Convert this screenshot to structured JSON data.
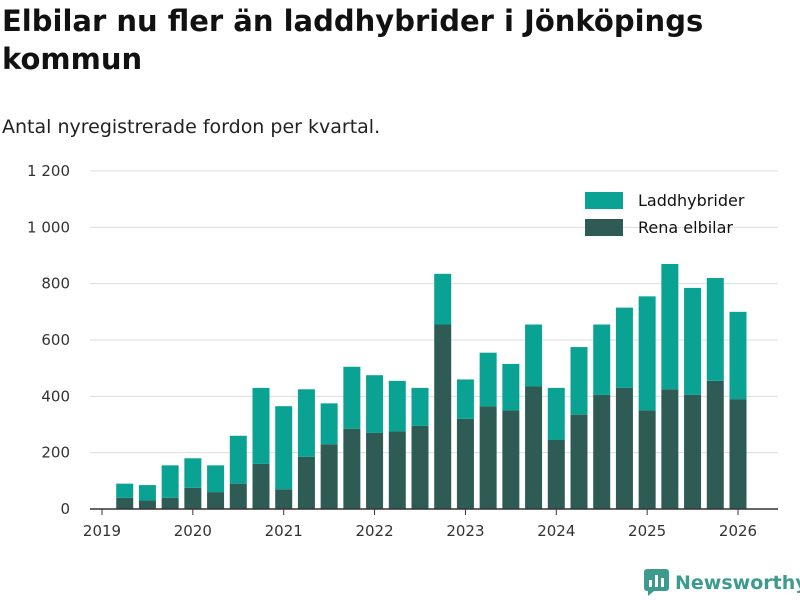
{
  "title": "Elbilar nu fler än laddhybrider i Jönköpings kommun",
  "subtitle": "Antal nyregistrerade fordon per kvartal.",
  "brand": {
    "name": "Newsworthy",
    "icon": "newsworthy-logo-icon"
  },
  "colors": {
    "laddhybrider": "#0aa393",
    "elbilar": "#2e5b54",
    "grid": "#dddddd",
    "axis": "#333333",
    "brand": "#3d9b8e"
  },
  "chart_data": {
    "type": "bar",
    "stacked": true,
    "title": "Elbilar nu fler än laddhybrider i Jönköpings kommun",
    "subtitle": "Antal nyregistrerade fordon per kvartal.",
    "xlabel": "",
    "ylabel": "",
    "ylim": [
      0,
      1200
    ],
    "yticks": [
      0,
      200,
      400,
      600,
      800,
      1000,
      1200
    ],
    "ytick_labels": [
      "0",
      "200",
      "400",
      "600",
      "800",
      "1 000",
      "1 200"
    ],
    "xticks": [
      "2019",
      "2020",
      "2021",
      "2022",
      "2023",
      "2024",
      "2025",
      "2026"
    ],
    "grid": true,
    "legend": "top-right",
    "categories": [
      "2019 Q2",
      "2019 Q3",
      "2019 Q4",
      "2020 Q1",
      "2020 Q2",
      "2020 Q3",
      "2020 Q4",
      "2021 Q1",
      "2021 Q2",
      "2021 Q3",
      "2021 Q4",
      "2022 Q1",
      "2022 Q2",
      "2022 Q3",
      "2022 Q4",
      "2023 Q1",
      "2023 Q2",
      "2023 Q3",
      "2023 Q4",
      "2024 Q1",
      "2024 Q2",
      "2024 Q3",
      "2024 Q4",
      "2025 Q1",
      "2025 Q2",
      "2025 Q3",
      "2025 Q4",
      "2026 Q1"
    ],
    "series": [
      {
        "name": "Rena elbilar",
        "values": [
          40,
          30,
          40,
          75,
          60,
          90,
          160,
          70,
          185,
          230,
          285,
          270,
          275,
          295,
          655,
          320,
          365,
          350,
          435,
          245,
          335,
          405,
          430,
          350,
          425,
          405,
          455,
          390
        ]
      },
      {
        "name": "Laddhybrider",
        "values": [
          50,
          55,
          115,
          105,
          95,
          170,
          270,
          295,
          240,
          145,
          220,
          205,
          180,
          135,
          180,
          140,
          190,
          165,
          220,
          185,
          240,
          250,
          285,
          405,
          445,
          380,
          365,
          310
        ]
      }
    ],
    "legend_entries": [
      "Laddhybrider",
      "Rena elbilar"
    ]
  }
}
